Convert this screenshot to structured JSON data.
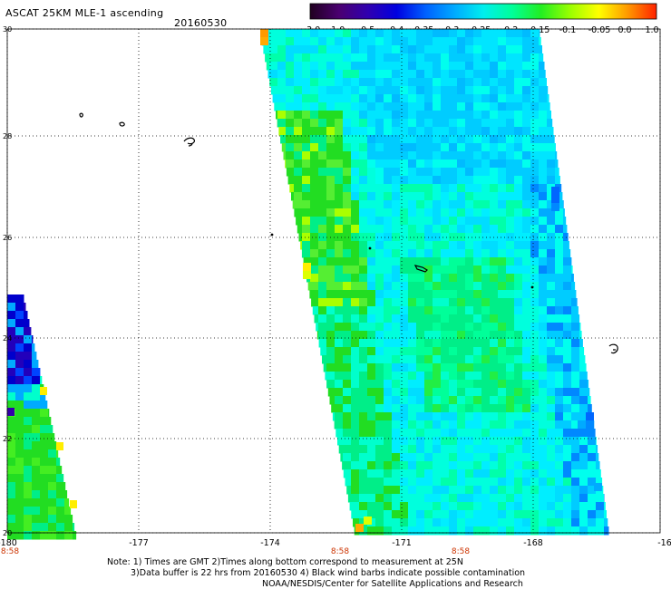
{
  "header": {
    "title": "ASCAT 25KM MLE-1 ascending",
    "date": "20160530"
  },
  "colorbar": {
    "labels": [
      "-3.0",
      "-1.0",
      "-0.5",
      "-0.4",
      "-0.35",
      "-0.3",
      "-0.25",
      "-0.2",
      "-0.15",
      "-0.1",
      "-0.05",
      "0.0",
      "1.0"
    ],
    "colors": [
      "#200020",
      "#4a0070",
      "#3000b0",
      "#0000e0",
      "#0060ff",
      "#00aaff",
      "#00eeee",
      "#00ff99",
      "#22ee22",
      "#99ff00",
      "#ffff00",
      "#ff9900",
      "#ff2200"
    ]
  },
  "map": {
    "lat_labels": [
      "30",
      "28",
      "26",
      "24",
      "22",
      "20"
    ],
    "lon_labels": [
      "-180",
      "-177",
      "-174",
      "-171",
      "-168",
      "-16"
    ],
    "time_labels": [
      "8:58",
      "8:58",
      "8:58"
    ],
    "time_color": "#cc3300",
    "grid": "dotted"
  },
  "footer": {
    "line1": "Note: 1) Times are GMT 2)Times along bottom correspond to measurement at 25N",
    "line2": "3)Data buffer is 22 hrs from 20160530 4) Black wind barbs indicate possible contamination",
    "line3": "NOAA/NESDIS/Center for Satellite Applications and Research"
  }
}
